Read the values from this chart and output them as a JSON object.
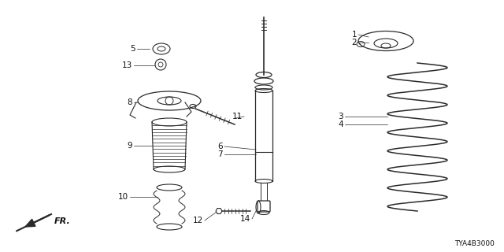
{
  "diagram_code": "TYA4B3000",
  "bg_color": "#ffffff",
  "line_color": "#2a2a2a",
  "text_color": "#111111",
  "figsize": [
    6.4,
    3.2
  ],
  "dpi": 100
}
